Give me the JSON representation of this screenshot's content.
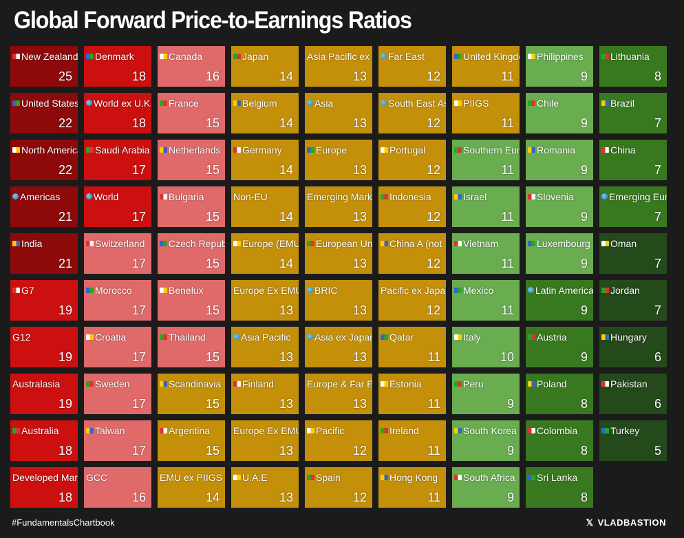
{
  "title": "Global Forward Price-to-Earnings Ratios",
  "footer": {
    "hashtag": "#FundamentalsChartbook",
    "brand": "VLADBASTION",
    "brand_icon": "x-logo-icon"
  },
  "colors": {
    "dark_red": "#8e0a0a",
    "red": "#cc1010",
    "light_red": "#e06a6a",
    "gold": "#c4900a",
    "light_green": "#69ad50",
    "green": "#38791f",
    "dark_green": "#24491a"
  },
  "chart_data": {
    "type": "table",
    "title": "Global Forward Price-to-Earnings Ratios",
    "columns": [
      [
        {
          "label": "New Zealand",
          "value": 25,
          "color": "dark_red",
          "icon": "flag-icon"
        },
        {
          "label": "United States",
          "value": 22,
          "color": "dark_red",
          "icon": "flag-icon"
        },
        {
          "label": "North America",
          "value": 22,
          "color": "dark_red",
          "icon": "flag-icon"
        },
        {
          "label": "Americas",
          "value": 21,
          "color": "dark_red",
          "icon": "globe-icon"
        },
        {
          "label": "India",
          "value": 21,
          "color": "dark_red",
          "icon": "flag-icon"
        },
        {
          "label": "G7",
          "value": 19,
          "color": "red",
          "icon": "building-icon"
        },
        {
          "label": "G12",
          "value": 19,
          "color": "red",
          "icon": ""
        },
        {
          "label": "Australasia",
          "value": 19,
          "color": "red",
          "icon": ""
        },
        {
          "label": "Australia",
          "value": 18,
          "color": "red",
          "icon": "flag-icon"
        },
        {
          "label": "Developed Markets",
          "value": 18,
          "color": "red",
          "icon": ""
        }
      ],
      [
        {
          "label": "Denmark",
          "value": 18,
          "color": "red",
          "icon": "flag-icon"
        },
        {
          "label": "World ex U.K.",
          "value": 18,
          "color": "red",
          "icon": "globe-icon"
        },
        {
          "label": "Saudi Arabia",
          "value": 17,
          "color": "red",
          "icon": "flag-icon"
        },
        {
          "label": "World",
          "value": 17,
          "color": "red",
          "icon": "globe-icon"
        },
        {
          "label": "Switzerland",
          "value": 17,
          "color": "light_red",
          "icon": "flag-icon"
        },
        {
          "label": "Morocco",
          "value": 17,
          "color": "light_red",
          "icon": "flag-icon"
        },
        {
          "label": "Croatia",
          "value": 17,
          "color": "light_red",
          "icon": "flag-icon"
        },
        {
          "label": "Sweden",
          "value": 17,
          "color": "light_red",
          "icon": "flag-icon"
        },
        {
          "label": "Taiwan",
          "value": 17,
          "color": "light_red",
          "icon": "flag-icon"
        },
        {
          "label": "GCC",
          "value": 16,
          "color": "light_red",
          "icon": ""
        }
      ],
      [
        {
          "label": "Canada",
          "value": 16,
          "color": "light_red",
          "icon": "flag-icon"
        },
        {
          "label": "France",
          "value": 15,
          "color": "light_red",
          "icon": "flag-icon"
        },
        {
          "label": "Netherlands",
          "value": 15,
          "color": "light_red",
          "icon": "flag-icon"
        },
        {
          "label": "Bulgaria",
          "value": 15,
          "color": "light_red",
          "icon": "flag-icon"
        },
        {
          "label": "Czech Republic",
          "value": 15,
          "color": "light_red",
          "icon": "flag-icon"
        },
        {
          "label": "Benelux",
          "value": 15,
          "color": "light_red",
          "icon": "flags-icon"
        },
        {
          "label": "Thailand",
          "value": 15,
          "color": "light_red",
          "icon": "flag-icon"
        },
        {
          "label": "Scandinavia",
          "value": 15,
          "color": "gold",
          "icon": "flags-icon"
        },
        {
          "label": "Argentina",
          "value": 15,
          "color": "gold",
          "icon": "flag-icon"
        },
        {
          "label": "EMU ex PIIGS",
          "value": 14,
          "color": "gold",
          "icon": ""
        }
      ],
      [
        {
          "label": "Japan",
          "value": 14,
          "color": "gold",
          "icon": "flag-icon"
        },
        {
          "label": "Belgium",
          "value": 14,
          "color": "gold",
          "icon": "flag-icon"
        },
        {
          "label": "Germany",
          "value": 14,
          "color": "gold",
          "icon": "flag-icon"
        },
        {
          "label": "Non-EU",
          "value": 14,
          "color": "gold",
          "icon": ""
        },
        {
          "label": "Europe (EMU)",
          "value": 14,
          "color": "gold",
          "icon": "flag-icon"
        },
        {
          "label": "Europe Ex EMU",
          "value": 13,
          "color": "gold",
          "icon": ""
        },
        {
          "label": "Asia Pacific",
          "value": 13,
          "color": "gold",
          "icon": "globe-icon"
        },
        {
          "label": "Finland",
          "value": 13,
          "color": "gold",
          "icon": "flag-icon"
        },
        {
          "label": "Europe Ex EMU",
          "value": 13,
          "color": "gold",
          "icon": ""
        },
        {
          "label": "U.A.E",
          "value": 13,
          "color": "gold",
          "icon": "flag-icon"
        }
      ],
      [
        {
          "label": "Asia Pacific ex Japan",
          "value": 13,
          "color": "gold",
          "icon": ""
        },
        {
          "label": "Asia",
          "value": 13,
          "color": "gold",
          "icon": "globe-icon"
        },
        {
          "label": "Europe",
          "value": 13,
          "color": "gold",
          "icon": "flag-icon"
        },
        {
          "label": "Emerging Markets",
          "value": 13,
          "color": "gold",
          "icon": ""
        },
        {
          "label": "European Union",
          "value": 13,
          "color": "gold",
          "icon": "flag-icon"
        },
        {
          "label": "BRIC",
          "value": 13,
          "color": "gold",
          "icon": "globe-icon"
        },
        {
          "label": "Asia ex Japan",
          "value": 13,
          "color": "gold",
          "icon": "globe-icon"
        },
        {
          "label": "Europe & Far East",
          "value": 13,
          "color": "gold",
          "icon": ""
        },
        {
          "label": "Pacific",
          "value": 12,
          "color": "gold",
          "icon": "flag-icon"
        },
        {
          "label": "Spain",
          "value": 12,
          "color": "gold",
          "icon": "flag-icon"
        }
      ],
      [
        {
          "label": "Far East",
          "value": 12,
          "color": "gold",
          "icon": "globe-icon"
        },
        {
          "label": "South East Asia",
          "value": 12,
          "color": "gold",
          "icon": "globe-icon"
        },
        {
          "label": "Portugal",
          "value": 12,
          "color": "gold",
          "icon": "flag-icon"
        },
        {
          "label": "Indonesia",
          "value": 12,
          "color": "gold",
          "icon": "flag-icon"
        },
        {
          "label": "China A (not",
          "value": 12,
          "color": "gold",
          "icon": "flag-icon"
        },
        {
          "label": "Pacific ex Japan",
          "value": 12,
          "color": "gold",
          "icon": ""
        },
        {
          "label": "Qatar",
          "value": 11,
          "color": "gold",
          "icon": "flag-icon"
        },
        {
          "label": "Estonia",
          "value": 11,
          "color": "gold",
          "icon": "flag-icon"
        },
        {
          "label": "Ireland",
          "value": 11,
          "color": "gold",
          "icon": "flag-icon"
        },
        {
          "label": "Hong Kong",
          "value": 11,
          "color": "gold",
          "icon": "flag-icon"
        }
      ],
      [
        {
          "label": "United Kingdom",
          "value": 11,
          "color": "gold",
          "icon": "flag-icon"
        },
        {
          "label": "PIIGS",
          "value": 11,
          "color": "gold",
          "icon": "pig-icon"
        },
        {
          "label": "Southern Europe",
          "value": 11,
          "color": "light_green",
          "icon": "flag-icon"
        },
        {
          "label": "Israel",
          "value": 11,
          "color": "light_green",
          "icon": "flag-icon"
        },
        {
          "label": "Vietnam",
          "value": 11,
          "color": "light_green",
          "icon": "flag-icon"
        },
        {
          "label": "Mexico",
          "value": 11,
          "color": "light_green",
          "icon": "flag-icon"
        },
        {
          "label": "Italy",
          "value": 10,
          "color": "light_green",
          "icon": "flag-icon"
        },
        {
          "label": "Peru",
          "value": 9,
          "color": "light_green",
          "icon": "flag-icon"
        },
        {
          "label": "South Korea",
          "value": 9,
          "color": "light_green",
          "icon": "flag-icon"
        },
        {
          "label": "South Africa",
          "value": 9,
          "color": "light_green",
          "icon": "flag-icon"
        }
      ],
      [
        {
          "label": "Philippines",
          "value": 9,
          "color": "light_green",
          "icon": "flag-icon"
        },
        {
          "label": "Chile",
          "value": 9,
          "color": "light_green",
          "icon": "flag-icon"
        },
        {
          "label": "Romania",
          "value": 9,
          "color": "light_green",
          "icon": "flag-icon"
        },
        {
          "label": "Slovenia",
          "value": 9,
          "color": "light_green",
          "icon": "flag-icon"
        },
        {
          "label": "Luxembourg",
          "value": 9,
          "color": "light_green",
          "icon": "flag-icon"
        },
        {
          "label": "Latin America",
          "value": 9,
          "color": "green",
          "icon": "globe-icon"
        },
        {
          "label": "Austria",
          "value": 9,
          "color": "green",
          "icon": "flag-icon"
        },
        {
          "label": "Poland",
          "value": 8,
          "color": "green",
          "icon": "flag-icon"
        },
        {
          "label": "Colombia",
          "value": 8,
          "color": "green",
          "icon": "flag-icon"
        },
        {
          "label": "Sri Lanka",
          "value": 8,
          "color": "green",
          "icon": "flag-icon"
        }
      ],
      [
        {
          "label": "Lithuania",
          "value": 8,
          "color": "green",
          "icon": "flag-icon"
        },
        {
          "label": "Brazil",
          "value": 7,
          "color": "green",
          "icon": "flag-icon"
        },
        {
          "label": "China",
          "value": 7,
          "color": "green",
          "icon": "flag-icon"
        },
        {
          "label": "Emerging Europe",
          "value": 7,
          "color": "green",
          "icon": "globe-icon"
        },
        {
          "label": "Oman",
          "value": 7,
          "color": "dark_green",
          "icon": "flag-icon"
        },
        {
          "label": "Jordan",
          "value": 7,
          "color": "dark_green",
          "icon": "flag-icon"
        },
        {
          "label": "Hungary",
          "value": 6,
          "color": "dark_green",
          "icon": "flag-icon"
        },
        {
          "label": "Pakistan",
          "value": 6,
          "color": "dark_green",
          "icon": "flag-icon"
        },
        {
          "label": "Turkey",
          "value": 5,
          "color": "dark_green",
          "icon": "flag-icon"
        }
      ]
    ]
  }
}
